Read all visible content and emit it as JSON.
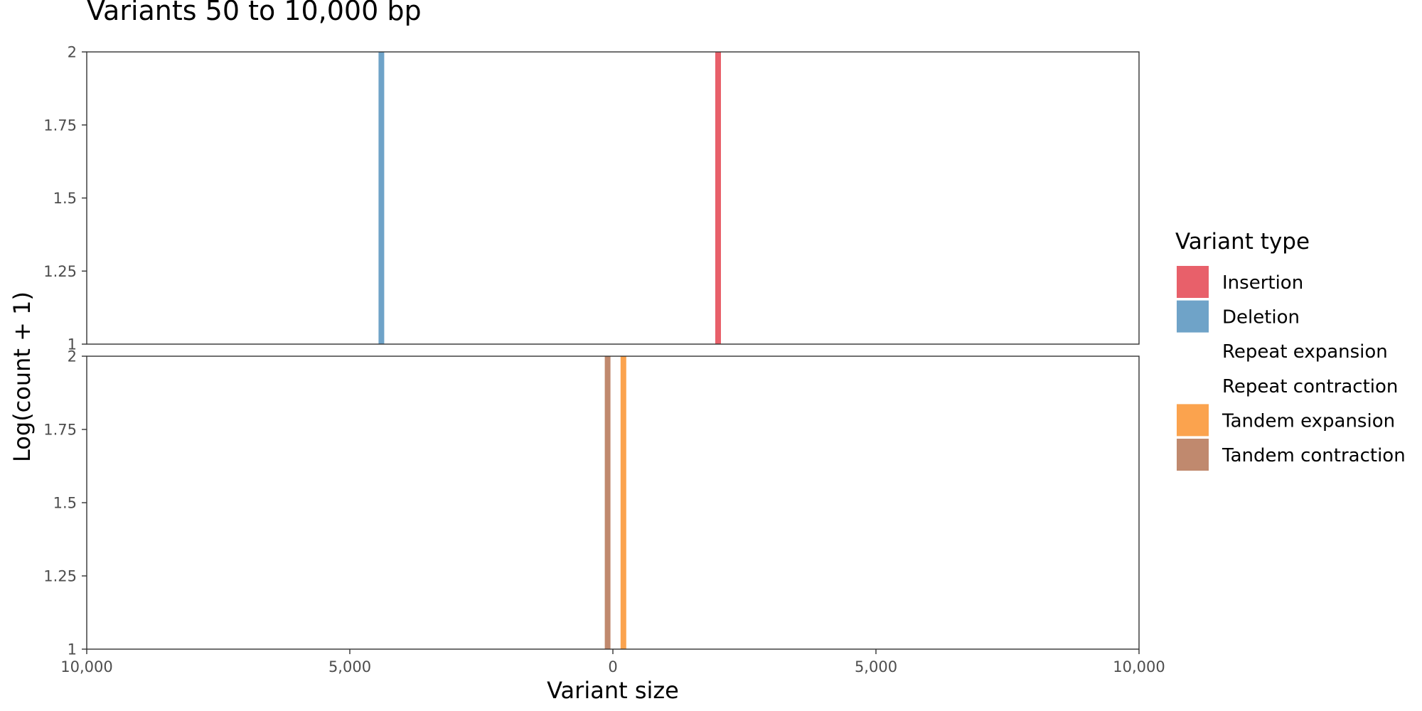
{
  "chart_data": {
    "type": "bar",
    "title": "Variants 50 to 10,000 bp",
    "xlabel": "Variant size",
    "ylabel": "Log(count + 1)",
    "x_ticks": [
      "10,000",
      "5,000",
      "0",
      "5,000",
      "10,000"
    ],
    "x_tick_values": [
      -10000,
      -5000,
      0,
      5000,
      10000
    ],
    "xlim": [
      -10000,
      10000
    ],
    "ylim": [
      1,
      2
    ],
    "y_ticks": [
      "1",
      "1.25",
      "1.5",
      "1.75",
      "2"
    ],
    "y_tick_values": [
      1,
      1.25,
      1.5,
      1.75,
      2
    ],
    "grid": false,
    "legend_position": "right",
    "legend": {
      "title": "Variant type",
      "entries": [
        {
          "name": "Insertion",
          "color": "#e8606a"
        },
        {
          "name": "Deletion",
          "color": "#6fa3c8"
        },
        {
          "name": "Repeat expansion",
          "color": "#ffffff"
        },
        {
          "name": "Repeat contraction",
          "color": "#ffffff"
        },
        {
          "name": "Tandem expansion",
          "color": "#fba34e"
        },
        {
          "name": "Tandem contraction",
          "color": "#c0896e"
        }
      ]
    },
    "panels": [
      {
        "bars": [
          {
            "series": "Deletion",
            "x": -4400,
            "value": 2,
            "color": "#6fa3c8"
          },
          {
            "series": "Insertion",
            "x": 2000,
            "value": 2,
            "color": "#e8606a"
          }
        ]
      },
      {
        "bars": [
          {
            "series": "Tandem contraction",
            "x": -100,
            "value": 2,
            "color": "#c0896e"
          },
          {
            "series": "Tandem expansion",
            "x": 200,
            "value": 2,
            "color": "#fba34e"
          }
        ]
      }
    ]
  }
}
